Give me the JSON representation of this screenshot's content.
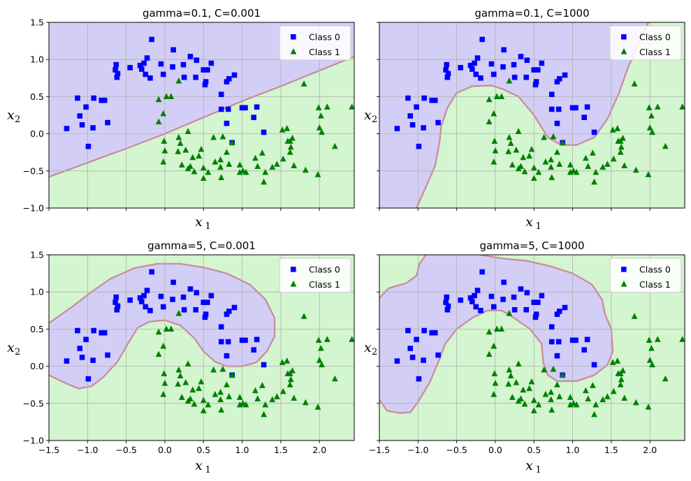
{
  "colors": {
    "class0_region": "#d3cef6",
    "class1_region": "#d3f5cf",
    "boundary": "#c98a9a",
    "class0_marker": "#0000ff",
    "class1_marker": "#008000",
    "grid": "#b0b0b0"
  },
  "chart_data": [
    {
      "type": "scatter",
      "title": "gamma=0.1, C=0.001",
      "xlabel": "x",
      "xlabel_sub": "1",
      "ylabel": "x",
      "ylabel_sub": "2",
      "xlim": [
        -1.5,
        2.45
      ],
      "ylim": [
        -1.0,
        1.5
      ],
      "xticks": [
        -1.5,
        -1.0,
        -0.5,
        0.0,
        0.5,
        1.0,
        1.5,
        2.0
      ],
      "xtick_labels": [],
      "yticks": [
        -1.0,
        -0.5,
        0.0,
        0.5,
        1.0,
        1.5
      ],
      "ytick_labels": [
        "−1.0",
        "−0.5",
        "0.0",
        "0.5",
        "1.0",
        "1.5"
      ],
      "grid": true,
      "legend_position": "top-right",
      "boundary": [
        [
          -1.5,
          -0.58
        ],
        [
          -1.0,
          -0.39
        ],
        [
          -0.5,
          -0.2
        ],
        [
          0.0,
          0.0
        ],
        [
          0.5,
          0.22
        ],
        [
          1.0,
          0.44
        ],
        [
          1.5,
          0.64
        ],
        [
          2.0,
          0.85
        ],
        [
          2.45,
          1.04
        ]
      ]
    },
    {
      "type": "scatter",
      "title": "gamma=0.1, C=1000",
      "xlabel": "x",
      "xlabel_sub": "1",
      "ylabel": "x",
      "ylabel_sub": "2",
      "xlim": [
        -1.5,
        2.45
      ],
      "ylim": [
        -1.0,
        1.5
      ],
      "xticks": [
        -1.5,
        -1.0,
        -0.5,
        0.0,
        0.5,
        1.0,
        1.5,
        2.0
      ],
      "xtick_labels": [],
      "yticks": [
        -1.0,
        -0.5,
        0.0,
        0.5,
        1.0,
        1.5
      ],
      "ytick_labels": [],
      "grid": true,
      "legend_position": "top-right",
      "boundary": [
        [
          -1.02,
          -1.0
        ],
        [
          -0.9,
          -0.72
        ],
        [
          -0.78,
          -0.43
        ],
        [
          -0.72,
          -0.1
        ],
        [
          -0.7,
          0.1
        ],
        [
          -0.62,
          0.35
        ],
        [
          -0.5,
          0.55
        ],
        [
          -0.3,
          0.64
        ],
        [
          -0.05,
          0.65
        ],
        [
          0.1,
          0.6
        ],
        [
          0.3,
          0.5
        ],
        [
          0.5,
          0.25
        ],
        [
          0.68,
          -0.05
        ],
        [
          0.85,
          -0.15
        ],
        [
          1.05,
          -0.15
        ],
        [
          1.28,
          -0.05
        ],
        [
          1.45,
          0.2
        ],
        [
          1.6,
          0.55
        ],
        [
          1.72,
          0.9
        ],
        [
          1.85,
          1.2
        ],
        [
          1.98,
          1.5
        ]
      ]
    },
    {
      "type": "scatter",
      "title": "gamma=5, C=0.001",
      "xlabel": "x",
      "xlabel_sub": "1",
      "ylabel": "x",
      "ylabel_sub": "2",
      "xlim": [
        -1.5,
        2.45
      ],
      "ylim": [
        -1.0,
        1.5
      ],
      "xticks": [
        -1.5,
        -1.0,
        -0.5,
        0.0,
        0.5,
        1.0,
        1.5,
        2.0
      ],
      "xtick_labels": [
        "−1.5",
        "−1.0",
        "−0.5",
        "0.0",
        "0.5",
        "1.0",
        "1.5",
        "2.0"
      ],
      "yticks": [
        -1.0,
        -0.5,
        0.0,
        0.5,
        1.0,
        1.5
      ],
      "ytick_labels": [
        "−1.0",
        "−0.5",
        "0.0",
        "0.5",
        "1.0",
        "1.5"
      ],
      "grid": true,
      "legend_position": "top-right",
      "boundary": [
        [
          -1.5,
          -0.12
        ],
        [
          -1.3,
          -0.22
        ],
        [
          -1.12,
          -0.3
        ],
        [
          -0.95,
          -0.27
        ],
        [
          -0.8,
          -0.15
        ],
        [
          -0.62,
          0.05
        ],
        [
          -0.48,
          0.3
        ],
        [
          -0.35,
          0.52
        ],
        [
          -0.2,
          0.6
        ],
        [
          0.0,
          0.62
        ],
        [
          0.2,
          0.55
        ],
        [
          0.38,
          0.38
        ],
        [
          0.5,
          0.2
        ],
        [
          0.65,
          0.06
        ],
        [
          0.8,
          0.0
        ],
        [
          1.0,
          0.0
        ],
        [
          1.18,
          0.05
        ],
        [
          1.32,
          0.2
        ],
        [
          1.42,
          0.4
        ],
        [
          1.42,
          0.65
        ],
        [
          1.3,
          0.9
        ],
        [
          1.1,
          1.1
        ],
        [
          0.8,
          1.25
        ],
        [
          0.5,
          1.33
        ],
        [
          0.2,
          1.38
        ],
        [
          -0.1,
          1.38
        ],
        [
          -0.4,
          1.32
        ],
        [
          -0.7,
          1.18
        ],
        [
          -0.95,
          1.0
        ],
        [
          -1.2,
          0.8
        ],
        [
          -1.5,
          0.58
        ]
      ]
    },
    {
      "type": "scatter",
      "title": "gamma=5, C=1000",
      "xlabel": "x",
      "xlabel_sub": "1",
      "ylabel": "x",
      "ylabel_sub": "2",
      "xlim": [
        -1.5,
        2.45
      ],
      "ylim": [
        -1.0,
        1.5
      ],
      "xticks": [
        -1.5,
        -1.0,
        -0.5,
        0.0,
        0.5,
        1.0,
        1.5,
        2.0
      ],
      "xtick_labels": [
        "−1.5",
        "−1.0",
        "−0.5",
        "0.0",
        "0.5",
        "1.0",
        "1.5",
        "2.0"
      ],
      "yticks": [
        -1.0,
        -0.5,
        0.0,
        0.5,
        1.0,
        1.5
      ],
      "ytick_labels": [],
      "grid": true,
      "legend_position": "top-right",
      "boundary": [
        [
          -1.5,
          -0.45
        ],
        [
          -1.4,
          -0.6
        ],
        [
          -1.25,
          -0.63
        ],
        [
          -1.1,
          -0.62
        ],
        [
          -1.0,
          -0.48
        ],
        [
          -0.85,
          -0.22
        ],
        [
          -0.72,
          0.1
        ],
        [
          -0.65,
          0.3
        ],
        [
          -0.5,
          0.5
        ],
        [
          -0.3,
          0.65
        ],
        [
          -0.1,
          0.75
        ],
        [
          0.08,
          0.75
        ],
        [
          0.2,
          0.68
        ],
        [
          0.45,
          0.5
        ],
        [
          0.6,
          0.3
        ],
        [
          0.62,
          0.05
        ],
        [
          0.68,
          -0.12
        ],
        [
          0.8,
          -0.2
        ],
        [
          1.05,
          -0.2
        ],
        [
          1.28,
          -0.12
        ],
        [
          1.45,
          0.02
        ],
        [
          1.52,
          0.2
        ],
        [
          1.5,
          0.5
        ],
        [
          1.42,
          0.7
        ],
        [
          1.38,
          0.9
        ],
        [
          1.25,
          1.1
        ],
        [
          1.0,
          1.25
        ],
        [
          0.7,
          1.35
        ],
        [
          0.4,
          1.42
        ],
        [
          0.1,
          1.45
        ],
        [
          -0.2,
          1.5
        ]
      ],
      "boundary2": [
        [
          -1.5,
          0.92
        ],
        [
          -1.38,
          1.05
        ],
        [
          -1.15,
          1.12
        ],
        [
          -1.02,
          1.22
        ],
        [
          -0.98,
          1.38
        ],
        [
          -0.9,
          1.5
        ]
      ]
    }
  ],
  "points": {
    "class0": [
      [
        -1.27,
        0.07
      ],
      [
        -1.13,
        0.48
      ],
      [
        -1.1,
        0.24
      ],
      [
        -1.07,
        0.12
      ],
      [
        -1.02,
        0.36
      ],
      [
        -0.93,
        0.08
      ],
      [
        -0.92,
        0.48
      ],
      [
        -0.99,
        -0.17
      ],
      [
        -0.82,
        0.45
      ],
      [
        -0.78,
        0.45
      ],
      [
        -0.74,
        0.15
      ],
      [
        -0.64,
        0.86
      ],
      [
        -0.63,
        0.93
      ],
      [
        -0.62,
        0.76
      ],
      [
        -0.61,
        0.81
      ],
      [
        -0.45,
        0.89
      ],
      [
        -0.32,
        0.92
      ],
      [
        -0.3,
        0.87
      ],
      [
        -0.27,
        0.95
      ],
      [
        -0.25,
        0.8
      ],
      [
        -0.23,
        1.02
      ],
      [
        -0.19,
        0.75
      ],
      [
        -0.17,
        1.27
      ],
      [
        -0.05,
        0.94
      ],
      [
        -0.02,
        0.8
      ],
      [
        0.1,
        0.9
      ],
      [
        0.11,
        1.13
      ],
      [
        0.24,
        0.93
      ],
      [
        0.25,
        0.76
      ],
      [
        0.33,
        1.04
      ],
      [
        0.4,
        0.76
      ],
      [
        0.41,
        0.99
      ],
      [
        0.5,
        0.86
      ],
      [
        0.52,
        0.66
      ],
      [
        0.53,
        0.7
      ],
      [
        0.55,
        0.86
      ],
      [
        0.6,
        0.95
      ],
      [
        0.73,
        0.53
      ],
      [
        0.73,
        0.33
      ],
      [
        0.8,
        0.7
      ],
      [
        0.82,
        0.33
      ],
      [
        0.83,
        0.74
      ],
      [
        0.8,
        0.14
      ],
      [
        0.9,
        0.79
      ],
      [
        1.0,
        0.35
      ],
      [
        1.04,
        0.35
      ],
      [
        1.15,
        0.22
      ],
      [
        1.19,
        0.36
      ],
      [
        1.28,
        0.02
      ],
      [
        0.87,
        -0.12
      ]
    ],
    "class1": [
      [
        -0.08,
        0.46
      ],
      [
        0.02,
        0.5
      ],
      [
        0.08,
        0.5
      ],
      [
        -0.02,
        0.27
      ],
      [
        -0.08,
        0.16
      ],
      [
        -0.01,
        -0.1
      ],
      [
        0.0,
        -0.23
      ],
      [
        -0.02,
        -0.38
      ],
      [
        0.18,
        0.71
      ],
      [
        0.18,
        -0.05
      ],
      [
        0.17,
        -0.24
      ],
      [
        0.2,
        -0.13
      ],
      [
        0.22,
        -0.42
      ],
      [
        0.27,
        -0.22
      ],
      [
        0.3,
        0.03
      ],
      [
        0.3,
        -0.47
      ],
      [
        0.36,
        -0.32
      ],
      [
        0.33,
        -0.44
      ],
      [
        0.38,
        -0.51
      ],
      [
        0.44,
        -0.3
      ],
      [
        0.47,
        -0.21
      ],
      [
        0.5,
        -0.46
      ],
      [
        0.5,
        -0.6
      ],
      [
        0.56,
        -0.52
      ],
      [
        0.63,
        -0.05
      ],
      [
        0.65,
        -0.38
      ],
      [
        0.72,
        -0.35
      ],
      [
        0.72,
        -0.45
      ],
      [
        0.75,
        -0.04
      ],
      [
        0.73,
        -0.59
      ],
      [
        0.8,
        -0.25
      ],
      [
        0.83,
        -0.41
      ],
      [
        0.87,
        -0.12
      ],
      [
        0.97,
        -0.52
      ],
      [
        0.97,
        -0.42
      ],
      [
        1.01,
        -0.5
      ],
      [
        1.05,
        -0.52
      ],
      [
        1.17,
        -0.33
      ],
      [
        1.2,
        -0.44
      ],
      [
        1.26,
        -0.26
      ],
      [
        1.3,
        -0.52
      ],
      [
        1.28,
        -0.65
      ],
      [
        1.39,
        -0.45
      ],
      [
        1.45,
        -0.41
      ],
      [
        1.53,
        -0.34
      ],
      [
        1.58,
        0.07
      ],
      [
        1.59,
        -0.1
      ],
      [
        1.62,
        -0.1
      ],
      [
        1.62,
        -0.25
      ],
      [
        1.63,
        -0.18
      ],
      [
        1.67,
        -0.43
      ],
      [
        1.8,
        0.67
      ],
      [
        1.82,
        -0.49
      ],
      [
        1.98,
        -0.55
      ],
      [
        1.99,
        0.35
      ],
      [
        2.02,
        0.24
      ],
      [
        2.0,
        0.08
      ],
      [
        2.03,
        0.02
      ],
      [
        2.1,
        0.36
      ],
      [
        2.2,
        -0.17
      ],
      [
        2.42,
        0.36
      ],
      [
        1.65,
        -0.06
      ],
      [
        1.52,
        0.05
      ]
    ]
  },
  "legend": {
    "class0_label": "Class 0",
    "class1_label": "Class 1"
  }
}
